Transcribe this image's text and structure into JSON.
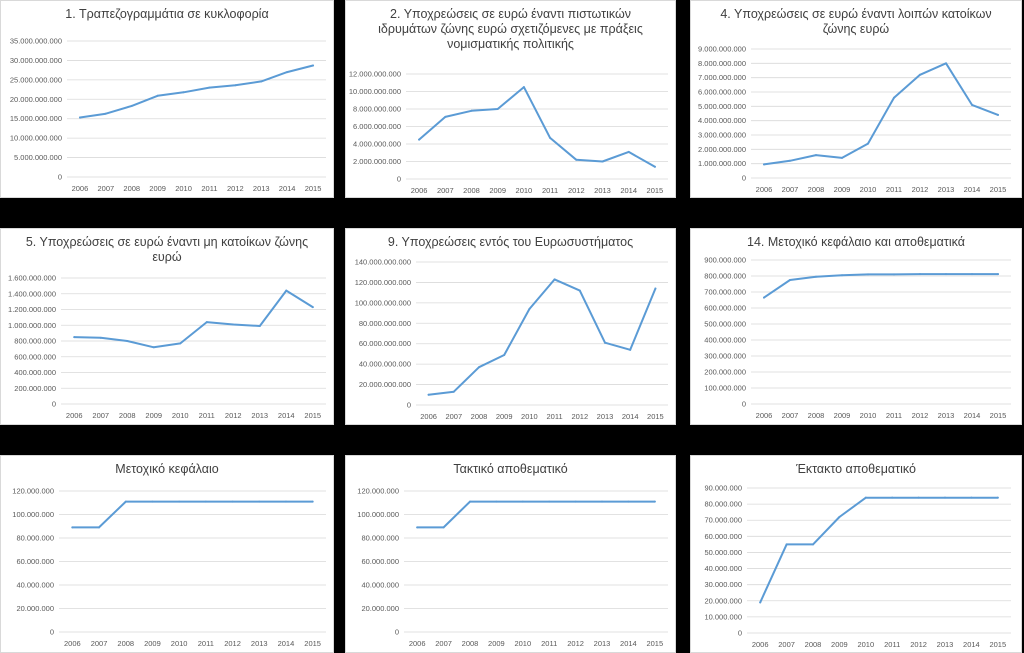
{
  "colors": {
    "line": "#5b9bd5",
    "grid": "#d9d9d9",
    "text": "#595959",
    "title": "#404040",
    "background": "#000000"
  },
  "chart_data": [
    {
      "type": "line",
      "title": "1. Τραπεζογραμμάτια σε κυκλοφορία",
      "x": [
        "2006",
        "2007",
        "2008",
        "2009",
        "2010",
        "2011",
        "2012",
        "2013",
        "2014",
        "2015"
      ],
      "values": [
        15300000000,
        16300000000,
        18300000000,
        20900000000,
        21800000000,
        23000000000,
        23600000000,
        24600000000,
        27000000000,
        28700000000
      ],
      "ylim": [
        0,
        35000000000
      ],
      "yticks": [
        0,
        5000000000,
        10000000000,
        15000000000,
        20000000000,
        25000000000,
        30000000000,
        35000000000
      ],
      "ytick_labels": [
        "0",
        "5.000.000.000",
        "10.000.000.000",
        "15.000.000.000",
        "20.000.000.000",
        "25.000.000.000",
        "30.000.000.000",
        "35.000.000.000"
      ]
    },
    {
      "type": "line",
      "title": "2. Υποχρεώσεις σε ευρώ έναντι πιστωτικών ιδρυμάτων ζώνης ευρώ σχετιζόμενες με πράξεις νομισματικής πολιτικής",
      "x": [
        "2006",
        "2007",
        "2008",
        "2009",
        "2010",
        "2011",
        "2012",
        "2013",
        "2014",
        "2015"
      ],
      "values": [
        4500000000,
        7100000000,
        7800000000,
        8000000000,
        10500000000,
        4700000000,
        2200000000,
        2000000000,
        3100000000,
        1400000000
      ],
      "ylim": [
        0,
        12000000000
      ],
      "yticks": [
        0,
        2000000000,
        4000000000,
        6000000000,
        8000000000,
        10000000000,
        12000000000
      ],
      "ytick_labels": [
        "0",
        "2.000.000.000",
        "4.000.000.000",
        "6.000.000.000",
        "8.000.000.000",
        "10.000.000.000",
        "12.000.000.000"
      ]
    },
    {
      "type": "line",
      "title": "4. Υποχρεώσεις σε ευρώ έναντι λοιπών κατοίκων ζώνης ευρώ",
      "x": [
        "2006",
        "2007",
        "2008",
        "2009",
        "2010",
        "2011",
        "2012",
        "2013",
        "2014",
        "2015"
      ],
      "values": [
        950000000,
        1200000000,
        1600000000,
        1400000000,
        2400000000,
        5600000000,
        7200000000,
        8000000000,
        5100000000,
        4400000000
      ],
      "ylim": [
        0,
        9000000000
      ],
      "yticks": [
        0,
        1000000000,
        2000000000,
        3000000000,
        4000000000,
        5000000000,
        6000000000,
        7000000000,
        8000000000,
        9000000000
      ],
      "ytick_labels": [
        "0",
        "1.000.000.000",
        "2.000.000.000",
        "3.000.000.000",
        "4.000.000.000",
        "5.000.000.000",
        "6.000.000.000",
        "7.000.000.000",
        "8.000.000.000",
        "9.000.000.000"
      ]
    },
    {
      "type": "line",
      "title": "5. Υποχρεώσεις σε ευρώ έναντι μη κατοίκων ζώνης ευρώ",
      "x": [
        "2006",
        "2007",
        "2008",
        "2009",
        "2010",
        "2011",
        "2012",
        "2013",
        "2014",
        "2015"
      ],
      "values": [
        850000000,
        840000000,
        800000000,
        720000000,
        770000000,
        1040000000,
        1010000000,
        990000000,
        1440000000,
        1230000000
      ],
      "ylim": [
        0,
        1600000000
      ],
      "yticks": [
        0,
        200000000,
        400000000,
        600000000,
        800000000,
        1000000000,
        1200000000,
        1400000000,
        1600000000
      ],
      "ytick_labels": [
        "0",
        "200.000.000",
        "400.000.000",
        "600.000.000",
        "800.000.000",
        "1.000.000.000",
        "1.200.000.000",
        "1.400.000.000",
        "1.600.000.000"
      ]
    },
    {
      "type": "line",
      "title": "9. Υποχρεώσεις εντός του Ευρωσυστήματος",
      "x": [
        "2006",
        "2007",
        "2008",
        "2009",
        "2010",
        "2011",
        "2012",
        "2013",
        "2014",
        "2015"
      ],
      "values": [
        10000000000,
        13000000000,
        37000000000,
        49000000000,
        94000000000,
        123000000000,
        112000000000,
        61000000000,
        54000000000,
        114000000000
      ],
      "ylim": [
        0,
        140000000000
      ],
      "yticks": [
        0,
        20000000000,
        40000000000,
        60000000000,
        80000000000,
        100000000000,
        120000000000,
        140000000000
      ],
      "ytick_labels": [
        "0",
        "20.000.000.000",
        "40.000.000.000",
        "60.000.000.000",
        "80.000.000.000",
        "100.000.000.000",
        "120.000.000.000",
        "140.000.000.000"
      ]
    },
    {
      "type": "line",
      "title": "14. Μετοχικό κεφάλαιο και αποθεματικά",
      "x": [
        "2006",
        "2007",
        "2008",
        "2009",
        "2010",
        "2011",
        "2012",
        "2013",
        "2014",
        "2015"
      ],
      "values": [
        665000000,
        775000000,
        795000000,
        805000000,
        810000000,
        810000000,
        812000000,
        812000000,
        812000000,
        812000000
      ],
      "ylim": [
        0,
        900000000
      ],
      "yticks": [
        0,
        100000000,
        200000000,
        300000000,
        400000000,
        500000000,
        600000000,
        700000000,
        800000000,
        900000000
      ],
      "ytick_labels": [
        "0",
        "100.000.000",
        "200.000.000",
        "300.000.000",
        "400.000.000",
        "500.000.000",
        "600.000.000",
        "700.000.000",
        "800.000.000",
        "900.000.000"
      ]
    },
    {
      "type": "line",
      "title": "Μετοχικό κεφάλαιο",
      "x": [
        "2006",
        "2007",
        "2008",
        "2009",
        "2010",
        "2011",
        "2012",
        "2013",
        "2014",
        "2015"
      ],
      "values": [
        89000000,
        89000000,
        111000000,
        111000000,
        111000000,
        111000000,
        111000000,
        111000000,
        111000000,
        111000000
      ],
      "ylim": [
        0,
        120000000
      ],
      "yticks": [
        0,
        20000000,
        40000000,
        60000000,
        80000000,
        100000000,
        120000000
      ],
      "ytick_labels": [
        "0",
        "20.000.000",
        "40.000.000",
        "60.000.000",
        "80.000.000",
        "100.000.000",
        "120.000.000"
      ]
    },
    {
      "type": "line",
      "title": "Τακτικό αποθεματικό",
      "x": [
        "2006",
        "2007",
        "2008",
        "2009",
        "2010",
        "2011",
        "2012",
        "2013",
        "2014",
        "2015"
      ],
      "values": [
        89000000,
        89000000,
        111000000,
        111000000,
        111000000,
        111000000,
        111000000,
        111000000,
        111000000,
        111000000
      ],
      "ylim": [
        0,
        120000000
      ],
      "yticks": [
        0,
        20000000,
        40000000,
        60000000,
        80000000,
        100000000,
        120000000
      ],
      "ytick_labels": [
        "0",
        "20.000.000",
        "40.000.000",
        "60.000.000",
        "80.000.000",
        "100.000.000",
        "120.000.000"
      ]
    },
    {
      "type": "line",
      "title": "Έκτακτο αποθεματικό",
      "x": [
        "2006",
        "2007",
        "2008",
        "2009",
        "2010",
        "2011",
        "2012",
        "2013",
        "2014",
        "2015"
      ],
      "values": [
        19000000,
        55000000,
        55000000,
        72000000,
        84000000,
        84000000,
        84000000,
        84000000,
        84000000,
        84000000
      ],
      "ylim": [
        0,
        90000000
      ],
      "yticks": [
        0,
        10000000,
        20000000,
        30000000,
        40000000,
        50000000,
        60000000,
        70000000,
        80000000,
        90000000
      ],
      "ytick_labels": [
        "0",
        "10.000.000",
        "20.000.000",
        "30.000.000",
        "40.000.000",
        "50.000.000",
        "60.000.000",
        "70.000.000",
        "80.000.000",
        "90.000.000"
      ]
    }
  ]
}
